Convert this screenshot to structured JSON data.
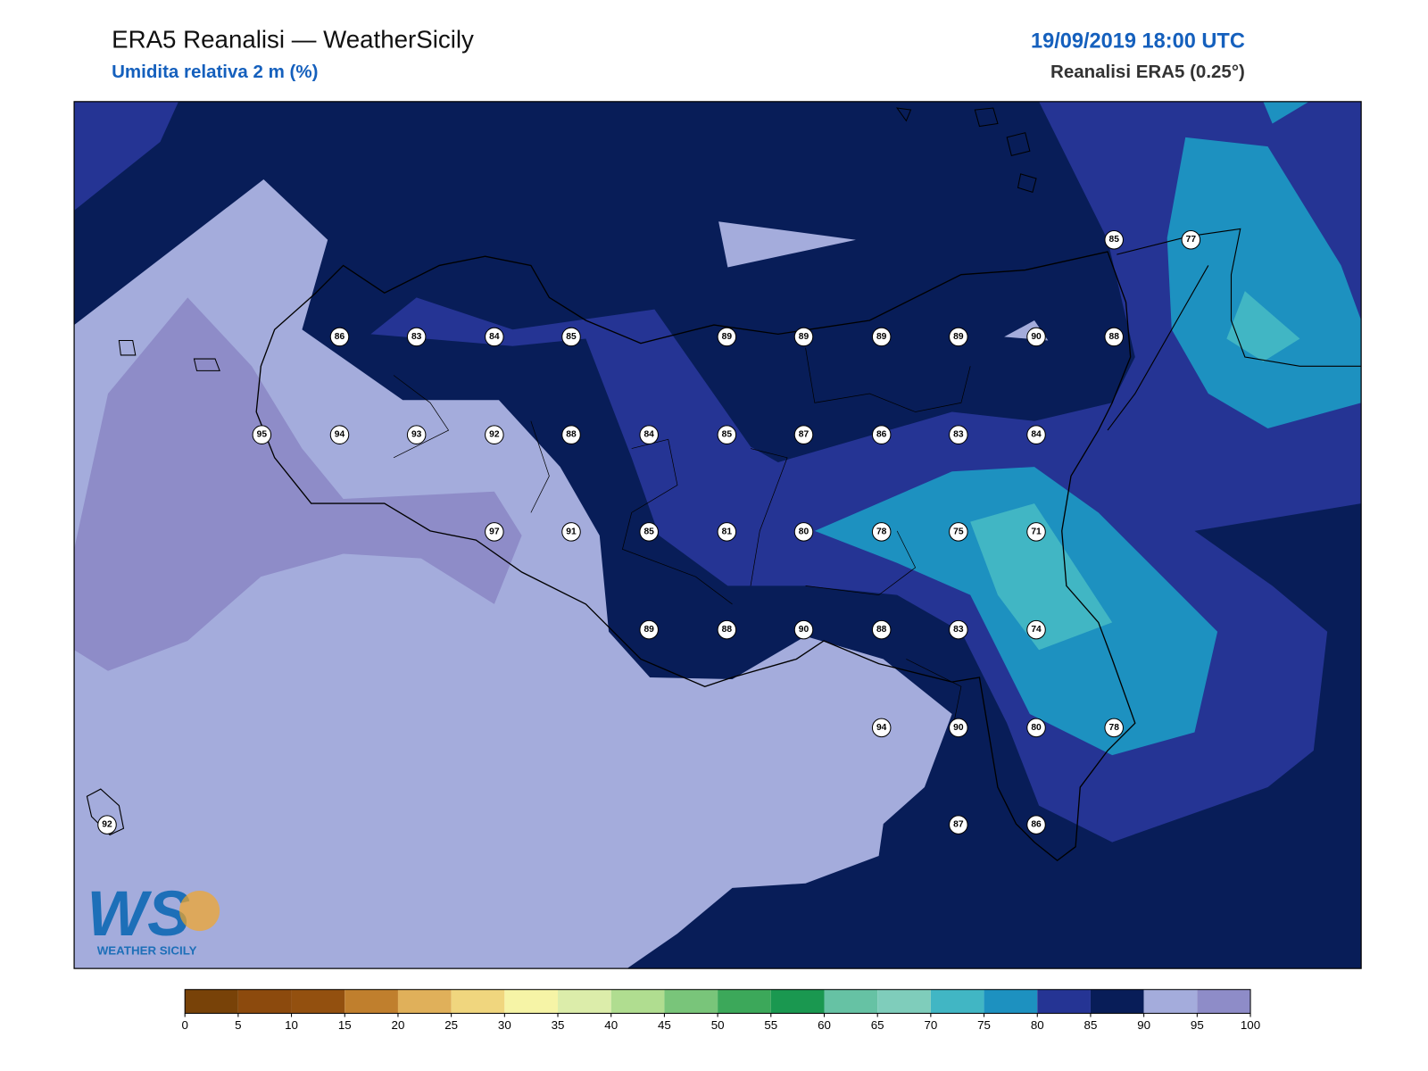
{
  "header": {
    "title": "ERA5 Reanalisi — WeatherSicily",
    "subtitle": "Umidita relativa 2 m (%)",
    "datetime": "19/09/2019 18:00 UTC",
    "source": "Reanalisi ERA5 (0.25°)"
  },
  "logo": {
    "mark": "WS",
    "name": "WEATHER SICILY"
  },
  "stations": [
    86,
    83,
    84,
    85,
    89,
    89,
    89,
    89,
    90,
    88,
    85,
    77,
    95,
    94,
    93,
    92,
    88,
    84,
    85,
    87,
    86,
    83,
    84,
    97,
    91,
    85,
    81,
    80,
    78,
    75,
    71,
    89,
    88,
    90,
    88,
    83,
    74,
    94,
    90,
    80,
    78,
    92,
    87,
    86
  ],
  "colorbar": {
    "levels": [
      0,
      5,
      10,
      15,
      20,
      25,
      30,
      35,
      40,
      45,
      50,
      55,
      60,
      65,
      70,
      75,
      80,
      85,
      90,
      95,
      100
    ],
    "colors": [
      "#784208",
      "#8c4a0d",
      "#93500f",
      "#c07f2d",
      "#e0b05a",
      "#f0d67e",
      "#f6f4a6",
      "#dcedaa",
      "#b0dd90",
      "#79c57a",
      "#3ca85a",
      "#1a9850",
      "#66c2a4",
      "#7fcdbb",
      "#41b6c4",
      "#1d91c0",
      "#253494",
      "#081d58",
      "#a4acdc",
      "#8e8cc8"
    ]
  }
}
